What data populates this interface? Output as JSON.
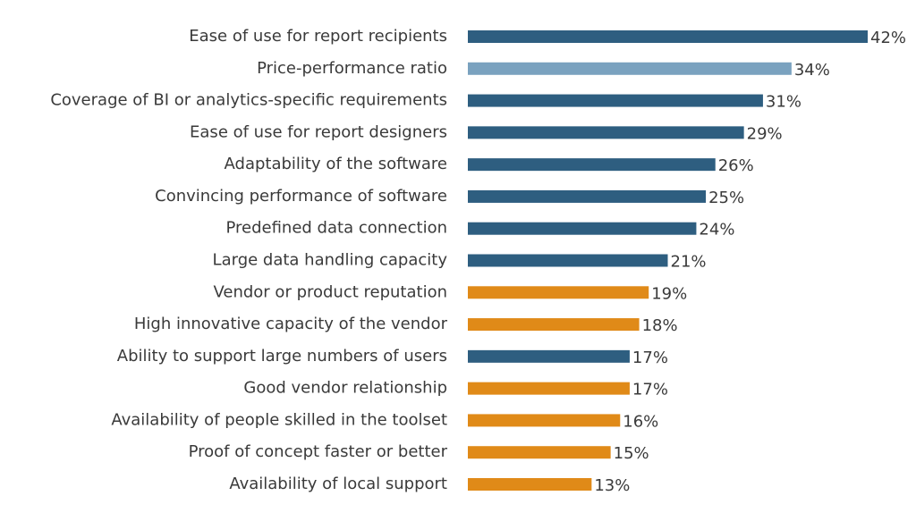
{
  "chart_data": {
    "type": "barh",
    "categories": [
      "Ease of use for report recipients",
      "Price-performance ratio",
      "Coverage of BI or analytics-specific requirements",
      "Ease of use for report designers",
      "Adaptability of the software",
      "Convincing performance of software",
      "Predefined data connection",
      "Large data handling capacity",
      "Vendor or product reputation",
      "High innovative capacity of the vendor",
      "Ability to support large numbers of users",
      "Good vendor relationship",
      "Availability of people skilled in the toolset",
      "Proof of concept faster or better",
      "Availability of local support"
    ],
    "values": [
      42,
      34,
      31,
      29,
      26,
      25,
      24,
      21,
      19,
      18,
      17,
      17,
      16,
      15,
      13
    ],
    "value_labels": [
      "42%",
      "34%",
      "31%",
      "29%",
      "26%",
      "25%",
      "24%",
      "21%",
      "19%",
      "18%",
      "17%",
      "17%",
      "16%",
      "15%",
      "13%"
    ],
    "colors": [
      "#2e5e80",
      "#7aa2bf",
      "#2e5e80",
      "#2e5e80",
      "#2e5e80",
      "#2e5e80",
      "#2e5e80",
      "#2e5e80",
      "#e08a18",
      "#e08a18",
      "#2e5e80",
      "#e08a18",
      "#e08a18",
      "#e08a18",
      "#e08a18"
    ]
  }
}
